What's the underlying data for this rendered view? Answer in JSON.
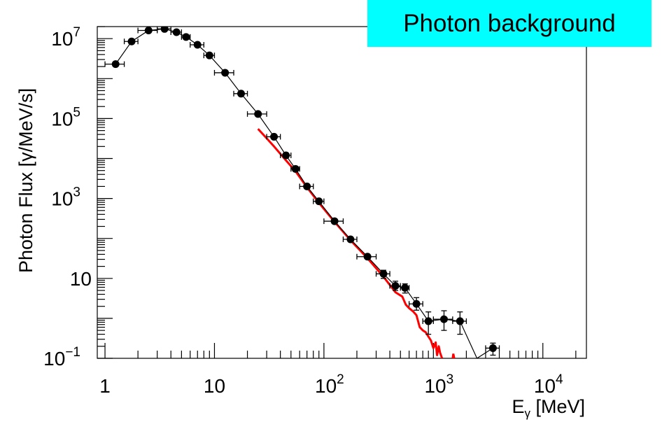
{
  "chart_data": {
    "type": "scatter",
    "title": "Photon background",
    "xlabel": {
      "main": "E",
      "sub": "γ",
      "unit": "[MeV]"
    },
    "ylabel": "Photon Flux [γ/MeV/s]",
    "xscale": "log",
    "yscale": "log",
    "xlim": [
      0.85,
      25000
    ],
    "ylim": [
      0.1,
      20000000
    ],
    "grid": false,
    "colors": {
      "data": "#000000",
      "curve": "#ff0000",
      "title_bg": "#00ffff"
    },
    "x_ticks": [
      {
        "value": 1,
        "base": "1",
        "exp": ""
      },
      {
        "value": 10,
        "base": "10",
        "exp": ""
      },
      {
        "value": 100,
        "base": "10",
        "exp": "2"
      },
      {
        "value": 1000,
        "base": "10",
        "exp": "3"
      },
      {
        "value": 10000,
        "base": "10",
        "exp": "4"
      }
    ],
    "y_ticks": [
      {
        "value": 0.1,
        "base": "10",
        "exp": "−1"
      },
      {
        "value": 10,
        "base": "10",
        "exp": ""
      },
      {
        "value": 1000,
        "base": "10",
        "exp": "3"
      },
      {
        "value": 100000,
        "base": "10",
        "exp": "5"
      },
      {
        "value": 10000000,
        "base": "10",
        "exp": "7"
      }
    ],
    "series": [
      {
        "style": "points-with-error-bars",
        "points": [
          {
            "x": 1.25,
            "y": 2300000,
            "xerr": [
              0.25,
              0.25
            ]
          },
          {
            "x": 1.75,
            "y": 8500000,
            "xerr": [
              0.25,
              0.25
            ]
          },
          {
            "x": 2.5,
            "y": 16000000,
            "xerr": [
              0.5,
              0.5
            ]
          },
          {
            "x": 3.5,
            "y": 17500000,
            "xerr": [
              0.5,
              0.5
            ]
          },
          {
            "x": 4.5,
            "y": 14500000,
            "xerr": [
              0.5,
              0.5
            ]
          },
          {
            "x": 5.5,
            "y": 11000000,
            "xerr": [
              0.5,
              0.5
            ]
          },
          {
            "x": 7,
            "y": 7000000,
            "xerr": [
              1,
              1
            ]
          },
          {
            "x": 9,
            "y": 3800000,
            "xerr": [
              1,
              1
            ]
          },
          {
            "x": 12.5,
            "y": 1400000,
            "xerr": [
              2.5,
              2.5
            ]
          },
          {
            "x": 17.5,
            "y": 420000,
            "xerr": [
              2.5,
              2.5
            ]
          },
          {
            "x": 25,
            "y": 130000,
            "xerr": [
              5,
              5
            ]
          },
          {
            "x": 35,
            "y": 35000,
            "xerr": [
              5,
              5
            ]
          },
          {
            "x": 45,
            "y": 12000,
            "xerr": [
              5,
              5
            ]
          },
          {
            "x": 55,
            "y": 5500,
            "xerr": [
              5,
              5
            ]
          },
          {
            "x": 70,
            "y": 2000,
            "xerr": [
              10,
              10
            ]
          },
          {
            "x": 90,
            "y": 850,
            "xerr": [
              10,
              10
            ]
          },
          {
            "x": 125,
            "y": 270,
            "xerr": [
              25,
              25
            ]
          },
          {
            "x": 175,
            "y": 95,
            "xerr": [
              25,
              25
            ]
          },
          {
            "x": 250,
            "y": 35,
            "xerr": [
              50,
              50
            ]
          },
          {
            "x": 350,
            "y": 13,
            "xerr": [
              50,
              50
            ],
            "yerr": [
              3,
              3
            ]
          },
          {
            "x": 450,
            "y": 6.5,
            "xerr": [
              50,
              50
            ],
            "yerr": [
              1.5,
              2
            ]
          },
          {
            "x": 550,
            "y": 5.8,
            "xerr": [
              50,
              50
            ],
            "yerr": [
              1.5,
              1.5
            ]
          },
          {
            "x": 700,
            "y": 2.3,
            "xerr": [
              100,
              100
            ],
            "yerr": [
              0.7,
              1
            ]
          },
          {
            "x": 900,
            "y": 0.85,
            "xerr": [
              100,
              100
            ],
            "yerr": [
              0.45,
              0.6
            ]
          },
          {
            "x": 1250,
            "y": 0.95,
            "xerr": [
              250,
              250
            ],
            "yerr": [
              0.45,
              0.6
            ]
          },
          {
            "x": 1750,
            "y": 0.85,
            "xerr": [
              250,
              250
            ],
            "yerr": [
              0.45,
              0.6
            ]
          },
          {
            "x": 3500,
            "y": 0.18,
            "xerr": [
              500,
              500
            ],
            "yerr": [
              0.06,
              0.06
            ]
          }
        ],
        "line_tail": {
          "x": 2500,
          "y": 0.1
        }
      },
      {
        "style": "line",
        "points": [
          {
            "x": 25,
            "y": 55000
          },
          {
            "x": 30,
            "y": 32000
          },
          {
            "x": 35,
            "y": 20000
          },
          {
            "x": 45,
            "y": 9000
          },
          {
            "x": 55,
            "y": 4800
          },
          {
            "x": 70,
            "y": 1900
          },
          {
            "x": 90,
            "y": 780
          },
          {
            "x": 125,
            "y": 260
          },
          {
            "x": 175,
            "y": 90
          },
          {
            "x": 250,
            "y": 32
          },
          {
            "x": 350,
            "y": 11
          },
          {
            "x": 450,
            "y": 4.5
          },
          {
            "x": 520,
            "y": 3.5
          },
          {
            "x": 560,
            "y": 2.2
          },
          {
            "x": 600,
            "y": 1.8
          },
          {
            "x": 650,
            "y": 1.5
          },
          {
            "x": 700,
            "y": 1.2
          },
          {
            "x": 750,
            "y": 0.6
          },
          {
            "x": 800,
            "y": 0.5
          },
          {
            "x": 850,
            "y": 0.45
          },
          {
            "x": 900,
            "y": 0.35
          },
          {
            "x": 950,
            "y": 0.28
          },
          {
            "x": 1000,
            "y": 0.18
          },
          {
            "x": 1050,
            "y": 0.25
          },
          {
            "x": 1080,
            "y": 0.12
          },
          {
            "x": 1120,
            "y": 0.2
          },
          {
            "x": 1150,
            "y": 0.14
          },
          {
            "x": 1200,
            "y": 0.1
          }
        ],
        "extra": [
          {
            "x": 1500,
            "y": 0.1
          },
          {
            "x": 1520,
            "y": 0.13
          },
          {
            "x": 1550,
            "y": 0.1
          }
        ]
      }
    ]
  }
}
